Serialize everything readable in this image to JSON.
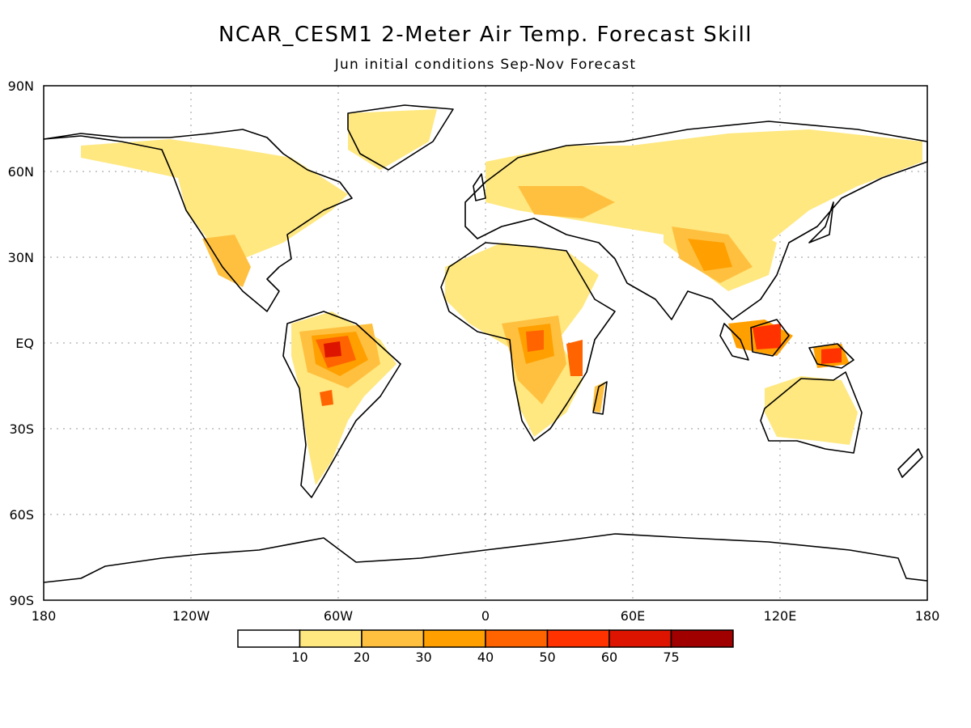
{
  "title": "NCAR_CESM1 2-Meter Air Temp. Forecast Skill",
  "subtitle": "Jun initial conditions  Sep-Nov Forecast",
  "lat_labels": [
    "90N",
    "60N",
    "30N",
    "EQ",
    "30S",
    "60S",
    "90S"
  ],
  "lon_labels": [
    "180",
    "120W",
    "60W",
    "0",
    "60E",
    "120E",
    "180"
  ],
  "colorbar": {
    "labels": [
      "10",
      "20",
      "30",
      "40",
      "50",
      "60",
      "75"
    ],
    "colors": [
      "#ffffff",
      "#ffe880",
      "#ffc040",
      "#ffa000",
      "#ff6400",
      "#ff3200",
      "#dc1400",
      "#a00000"
    ]
  }
}
